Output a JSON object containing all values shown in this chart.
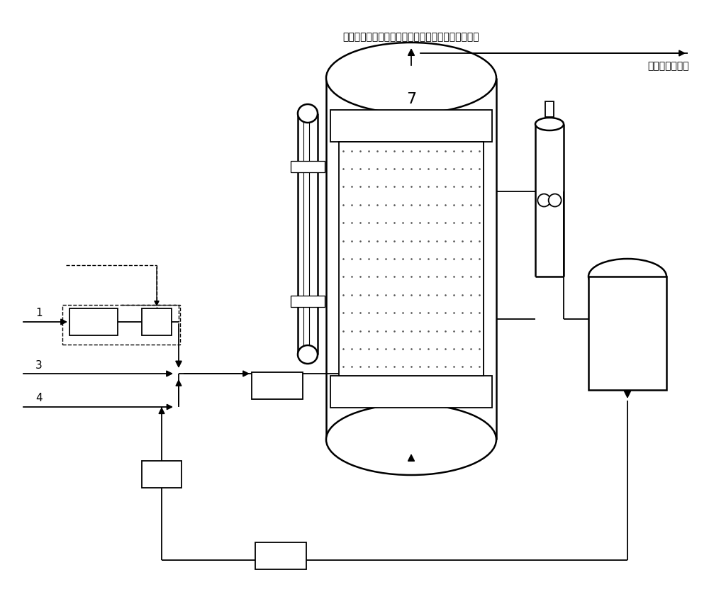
{
  "bg_color": "#ffffff",
  "line_color": "#000000",
  "title_text": "反应气含顺酉、醋酸、丙烯酸、一氧化碳、二氧化碳",
  "subtitle_text": "去溶剑吸收装置",
  "lw": 1.3,
  "lw2": 1.8
}
